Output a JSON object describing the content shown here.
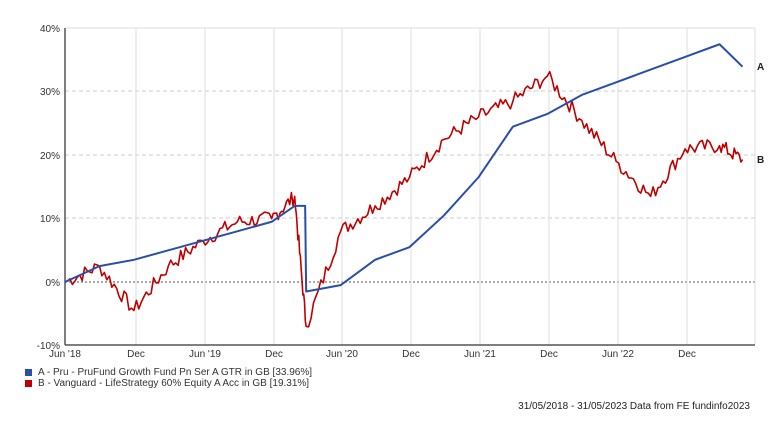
{
  "chart_data": {
    "type": "line",
    "title": "",
    "xlabel": "",
    "ylabel": "",
    "ylim": [
      -10,
      40
    ],
    "yticks": [
      "40%",
      "30%",
      "20%",
      "10%",
      "0%",
      "-10%"
    ],
    "xticks": [
      "Jun '18",
      "Dec",
      "Jun '19",
      "Dec",
      "Jun '20",
      "Dec",
      "Jun '21",
      "Dec",
      "Jun '22",
      "Dec"
    ],
    "grid": true,
    "legend_position": "bottom-left",
    "x": [
      "2018-06",
      "2018-09",
      "2018-12",
      "2019-03",
      "2019-06",
      "2019-09",
      "2019-12",
      "2020-02",
      "2020-03",
      "2020-06",
      "2020-09",
      "2020-12",
      "2021-03",
      "2021-06",
      "2021-09",
      "2021-12",
      "2022-03",
      "2022-06",
      "2022-09",
      "2022-12",
      "2023-03",
      "2023-05"
    ],
    "series": [
      {
        "name": "A - Pru - PruFund Growth Fund Pn Ser A GTR in GB [33.96%]",
        "short": "A",
        "color": "#2a4fa8",
        "end_value": 33.96,
        "values": [
          0,
          2.5,
          3.5,
          5.0,
          6.5,
          8.0,
          9.5,
          12.0,
          -1.5,
          -0.5,
          3.5,
          5.5,
          10.5,
          16.5,
          24.5,
          26.5,
          29.5,
          31.5,
          33.5,
          35.5,
          37.5,
          33.96
        ]
      },
      {
        "name": "B - Vanguard - LifeStrategy 60% Equity A Acc in GB [19.31%]",
        "short": "B",
        "color": "#c00000",
        "end_value": 19.31,
        "values": [
          0,
          2.5,
          -4.5,
          2.5,
          6.5,
          9.5,
          10.0,
          13.5,
          -7.0,
          8.0,
          12.0,
          16.5,
          22.5,
          26.0,
          28.5,
          32.5,
          25.5,
          19.0,
          13.5,
          21.0,
          21.5,
          19.31
        ]
      }
    ]
  },
  "legend": {
    "items": [
      {
        "label": "A - Pru - PruFund Growth Fund Pn Ser A GTR in GB [33.96%]",
        "color": "#2a4fa8"
      },
      {
        "label": "B - Vanguard - LifeStrategy 60% Equity A Acc in GB [19.31%]",
        "color": "#c00000"
      }
    ]
  },
  "end_labels": {
    "a": "A",
    "b": "B"
  },
  "footer": {
    "text": "31/05/2018 - 31/05/2023 Data from FE fundinfo2023"
  }
}
